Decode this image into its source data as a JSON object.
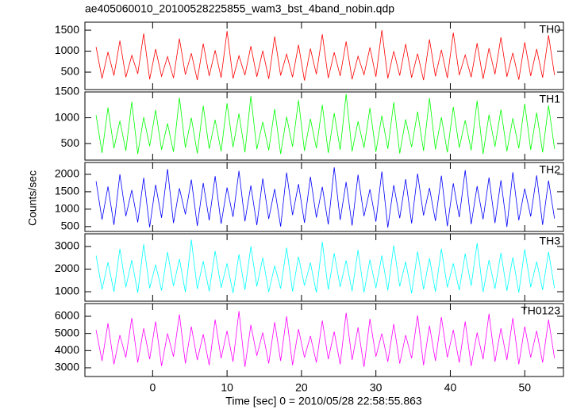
{
  "title": "ae405060010_20100528225855_wam3_bst_4band_nobin.qdp",
  "x_label": "Time [sec] 0 = 2010/05/28 22:58:55.863",
  "y_label": "Counts/sec",
  "xlim": [
    -9.1,
    55.2
  ],
  "xticks": [
    0,
    10,
    20,
    30,
    40,
    50
  ],
  "x": [
    -7.6,
    -6.8,
    -6,
    -5.2,
    -4.4,
    -3.6,
    -2.8,
    -2,
    -1.2,
    -0.4,
    0.4,
    1.2,
    2,
    2.8,
    3.6,
    4.4,
    5.2,
    6,
    6.8,
    7.6,
    8.4,
    9.2,
    10,
    10.8,
    11.6,
    12.4,
    13.2,
    14,
    14.8,
    15.6,
    16.4,
    17.2,
    18,
    18.8,
    19.6,
    20.4,
    21.2,
    22,
    22.8,
    23.6,
    24.4,
    25.2,
    26,
    26.8,
    27.6,
    28.4,
    29.2,
    30,
    30.8,
    31.6,
    32.4,
    33.2,
    34,
    34.8,
    35.6,
    36.4,
    37.2,
    38,
    38.8,
    39.6,
    40.4,
    41.2,
    42,
    42.8,
    43.6,
    44.4,
    45.2,
    46,
    46.8,
    47.6,
    48.4,
    49.2,
    50,
    50.8,
    51.6,
    52.4,
    53.2,
    54
  ],
  "chart_data": [
    {
      "type": "line",
      "label": "TH0",
      "color": "#ff0000",
      "ylim": [
        85,
        1690
      ],
      "yticks": [
        500,
        1000,
        1500
      ],
      "values": [
        1100,
        350,
        980,
        420,
        1250,
        380,
        900,
        460,
        1420,
        330,
        1050,
        400,
        870,
        360,
        1300,
        440,
        950,
        310,
        1180,
        410,
        1020,
        370,
        1480,
        350,
        890,
        430,
        1120,
        390,
        1010,
        340,
        1350,
        420,
        930,
        380,
        1150,
        300,
        1060,
        450,
        1400,
        360,
        970,
        410,
        1230,
        330,
        880,
        440,
        1090,
        390,
        1500,
        350,
        1000,
        420,
        1170,
        370,
        940,
        310,
        1280,
        400,
        1030,
        360,
        1440,
        430,
        910,
        380,
        1190,
        340,
        1070,
        450,
        1330,
        390,
        960,
        320,
        1210,
        410,
        1050,
        370,
        1380,
        430
      ]
    },
    {
      "type": "line",
      "label": "TH1",
      "color": "#00ff00",
      "ylim": [
        180,
        1500
      ],
      "yticks": [
        500,
        1000,
        1500
      ],
      "values": [
        1050,
        320,
        1200,
        410,
        940,
        360,
        1310,
        300,
        1010,
        450,
        1150,
        380,
        890,
        340,
        1390,
        420,
        1000,
        310,
        1230,
        400,
        960,
        350,
        1280,
        430,
        1080,
        330,
        1420,
        390,
        920,
        370,
        1170,
        300,
        1020,
        440,
        1340,
        360,
        980,
        410,
        1250,
        320,
        1090,
        380,
        1460,
        350,
        930,
        420,
        1190,
        340,
        1040,
        400,
        1300,
        310,
        970,
        430,
        1120,
        360,
        1380,
        390,
        1010,
        330,
        1210,
        420,
        950,
        370,
        1330,
        300,
        1060,
        440,
        1160,
        350,
        990,
        410,
        1270,
        380,
        1100,
        330,
        1240,
        400
      ]
    },
    {
      "type": "line",
      "label": "TH2",
      "color": "#0000ff",
      "ylim": [
        360,
        2340
      ],
      "yticks": [
        500,
        1000,
        1500,
        2000
      ],
      "values": [
        1800,
        700,
        1650,
        550,
        2000,
        800,
        1550,
        620,
        1900,
        480,
        1700,
        750,
        2150,
        600,
        1600,
        850,
        1850,
        520,
        1750,
        680,
        1950,
        580,
        1620,
        780,
        2100,
        650,
        1680,
        540,
        1880,
        720,
        1580,
        500,
        2050,
        830,
        1720,
        610,
        1930,
        760,
        1640,
        560,
        2200,
        690,
        1780,
        530,
        1990,
        800,
        1570,
        640,
        2080,
        470,
        1690,
        740,
        1860,
        590,
        2020,
        820,
        1610,
        660,
        1960,
        510,
        1740,
        770,
        2120,
        570,
        1660,
        710,
        1910,
        600,
        1830,
        490,
        2060,
        680,
        1590,
        790,
        1970,
        550,
        1820,
        730
      ]
    },
    {
      "type": "line",
      "label": "TH3",
      "color": "#00ffff",
      "ylim": [
        580,
        3560
      ],
      "yticks": [
        1000,
        2000,
        3000
      ],
      "values": [
        2600,
        1100,
        2300,
        1000,
        2900,
        1200,
        2400,
        950,
        3100,
        1150,
        2200,
        1050,
        2750,
        1250,
        2450,
        980,
        3300,
        1120,
        2350,
        1020,
        2800,
        1180,
        2250,
        940,
        2650,
        1080,
        3000,
        1230,
        2500,
        990,
        2150,
        1140,
        2950,
        1010,
        2550,
        1270,
        2280,
        960,
        3200,
        1090,
        2700,
        1210,
        2380,
        1030,
        2850,
        970,
        2420,
        1160,
        2600,
        1060,
        3050,
        1240,
        2320,
        930,
        2780,
        1110,
        2480,
        1000,
        2900,
        1190,
        2250,
        1070,
        2680,
        1260,
        3150,
        990,
        2400,
        1130,
        2720,
        1040,
        2520,
        960,
        2880,
        1200,
        2330,
        1080,
        2760,
        1150
      ]
    },
    {
      "type": "line",
      "label": "TH0123",
      "color": "#ff00ff",
      "ylim": [
        2490,
        6740
      ],
      "yticks": [
        3000,
        4000,
        5000,
        6000
      ],
      "values": [
        5200,
        3400,
        5600,
        3200,
        4900,
        3600,
        5900,
        3300,
        5300,
        3500,
        5700,
        3100,
        5000,
        3650,
        6100,
        3250,
        5400,
        3450,
        4950,
        3150,
        5800,
        3550,
        5150,
        3350,
        6300,
        3050,
        5500,
        3700,
        5050,
        3250,
        5650,
        3400,
        6000,
        3150,
        5250,
        3600,
        4850,
        3300,
        5750,
        3500,
        5100,
        3200,
        6200,
        3450,
        5350,
        3050,
        5850,
        3650,
        5000,
        3350,
        5550,
        3250,
        4900,
        3550,
        6050,
        3150,
        5450,
        3400,
        5950,
        3600,
        5200,
        3300,
        5700,
        3100,
        5050,
        3500,
        6150,
        3350,
        5300,
        3450,
        5900,
        3200,
        5400,
        3600,
        5150,
        3300,
        5800,
        3550
      ]
    }
  ]
}
